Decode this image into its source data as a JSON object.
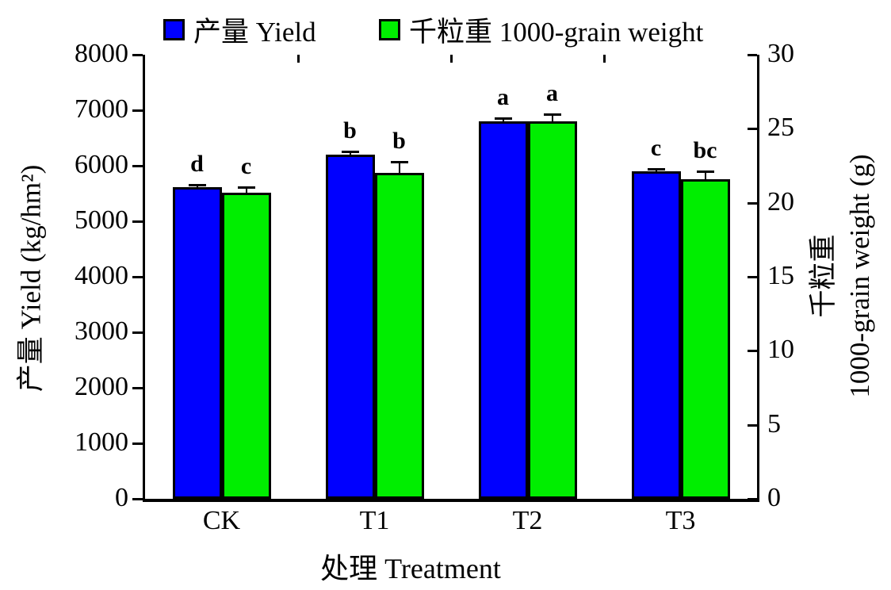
{
  "colors": {
    "yield_bar": "#0000FF",
    "grain_weight_bar": "#00EE00",
    "axis": "#000000",
    "background": "#FFFFFF"
  },
  "chart_data": {
    "type": "bar",
    "title": "",
    "categories": [
      "CK",
      "T1",
      "T2",
      "T3"
    ],
    "series": [
      {
        "name": "产量 Yield",
        "axis": "left",
        "color": "#0000FF",
        "values": [
          5620,
          6200,
          6800,
          5900
        ],
        "errors": [
          30,
          40,
          40,
          30
        ],
        "letters": [
          "d",
          "b",
          "a",
          "c"
        ]
      },
      {
        "name": "千粒重 1000-grain weight",
        "axis": "right",
        "color": "#00EE00",
        "values": [
          20.7,
          22.0,
          25.5,
          21.6
        ],
        "errors": [
          0.3,
          0.7,
          0.45,
          0.45
        ],
        "letters": [
          "c",
          "b",
          "a",
          "bc"
        ]
      }
    ],
    "left_axis": {
      "label": "产量 Yield (kg/hm²)",
      "min": 0,
      "max": 8000,
      "step": 1000,
      "ticks": [
        "8000",
        "7000",
        "6000",
        "5000",
        "4000",
        "3000",
        "2000",
        "1000",
        "0"
      ]
    },
    "right_axis": {
      "label_line1": "千粒重",
      "label_line2": "1000-grain weight (g)",
      "min": 0,
      "max": 30,
      "step": 5,
      "ticks": [
        "30",
        "25",
        "20",
        "15",
        "10",
        "5",
        "0"
      ]
    },
    "x_axis": {
      "label": "处理 Treatment"
    },
    "legend": [
      {
        "label": "产量 Yield",
        "color": "#0000FF"
      },
      {
        "label": "千粒重 1000-grain weight",
        "color": "#00EE00"
      }
    ],
    "grid": false,
    "legend_position": "top"
  }
}
